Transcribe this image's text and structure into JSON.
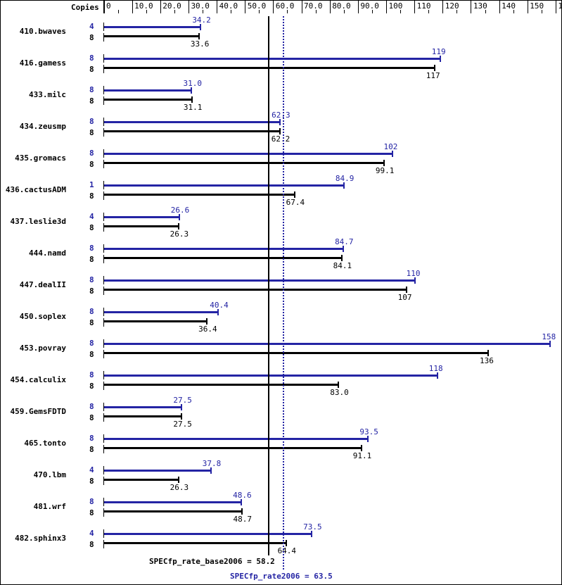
{
  "chart_data": {
    "type": "bar",
    "orientation": "horizontal",
    "title": "",
    "xlabel": "",
    "header_label": "Copies",
    "xlim": [
      0,
      160
    ],
    "ticks": [
      "0",
      "10.0",
      "20.0",
      "30.0",
      "40.0",
      "50.0",
      "60.0",
      "70.0",
      "80.0",
      "90.0",
      "100",
      "110",
      "120",
      "130",
      "140",
      "150",
      "160"
    ],
    "categories": [
      "410.bwaves",
      "416.gamess",
      "433.milc",
      "434.zeusmp",
      "435.gromacs",
      "436.cactusADM",
      "437.leslie3d",
      "444.namd",
      "447.dealII",
      "450.soplex",
      "453.povray",
      "454.calculix",
      "459.GemsFDTD",
      "465.tonto",
      "470.lbm",
      "481.wrf",
      "482.sphinx3"
    ],
    "series": [
      {
        "name": "SPECfp_rate2006 (peak)",
        "color": "#2424a4",
        "copies": [
          "4",
          "8",
          "8",
          "8",
          "8",
          "1",
          "4",
          "8",
          "8",
          "8",
          "8",
          "8",
          "8",
          "8",
          "4",
          "8",
          "4"
        ],
        "values": [
          34.2,
          119,
          31.0,
          62.3,
          102,
          84.9,
          26.6,
          84.7,
          110,
          40.4,
          158,
          118,
          27.5,
          93.5,
          37.8,
          48.6,
          73.5
        ],
        "labels": [
          "34.2",
          "119",
          "31.0",
          "62.3",
          "102",
          "84.9",
          "26.6",
          "84.7",
          "110",
          "40.4",
          "158",
          "118",
          "27.5",
          "93.5",
          "37.8",
          "48.6",
          "73.5"
        ]
      },
      {
        "name": "SPECfp_rate_base2006",
        "color": "#000000",
        "copies": [
          "8",
          "8",
          "8",
          "8",
          "8",
          "8",
          "8",
          "8",
          "8",
          "8",
          "8",
          "8",
          "8",
          "8",
          "8",
          "8",
          "8"
        ],
        "values": [
          33.6,
          117,
          31.1,
          62.2,
          99.1,
          67.4,
          26.3,
          84.1,
          107,
          36.4,
          136,
          83.0,
          27.5,
          91.1,
          26.3,
          48.7,
          64.4
        ],
        "labels": [
          "33.6",
          "117",
          "31.1",
          "62.2",
          "99.1",
          "67.4",
          "26.3",
          "84.1",
          "107",
          "36.4",
          "136",
          "83.0",
          "27.5",
          "91.1",
          "26.3",
          "48.7",
          "64.4"
        ]
      }
    ],
    "reference_lines": [
      {
        "name": "SPECfp_rate_base2006",
        "value": 58.2,
        "label": "SPECfp_rate_base2006 = 58.2",
        "style": "solid",
        "color": "#000000"
      },
      {
        "name": "SPECfp_rate2006",
        "value": 63.5,
        "label": "SPECfp_rate2006 = 63.5",
        "style": "dotted",
        "color": "#2424a4"
      }
    ],
    "grid": false,
    "legend": "none"
  }
}
